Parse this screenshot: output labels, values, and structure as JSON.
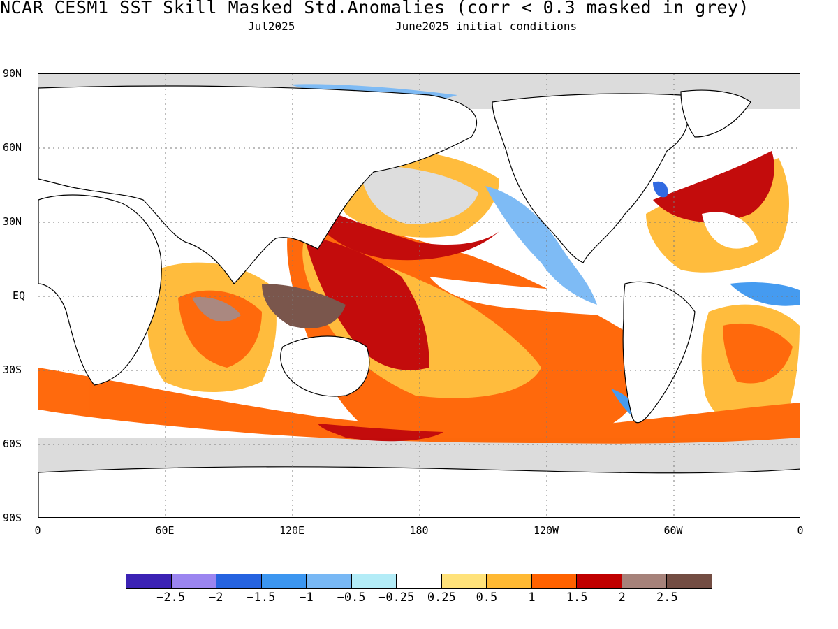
{
  "title": "NCAR_CESM1  SST Skill Masked Std.Anomalies (corr < 0.3 masked in grey)",
  "subtitle_month": "Jul2025",
  "subtitle_init": "June2025 initial conditions",
  "lat_labels": [
    "90N",
    "60N",
    "30N",
    "EQ",
    "30S",
    "60S",
    "90S"
  ],
  "lon_labels": [
    "0",
    "60E",
    "120E",
    "180",
    "120W",
    "60W",
    "0"
  ],
  "colorbar": {
    "colors": [
      "#3b22b4",
      "#9b85f0",
      "#2663e0",
      "#3c96f0",
      "#78b8f5",
      "#b3ecf7",
      "#ffffff",
      "#ffe27a",
      "#ffb933",
      "#ff6200",
      "#c00000",
      "#a6827a",
      "#734d43"
    ],
    "labels": [
      "−2.5",
      "−2",
      "−1.5",
      "−1",
      "−0.5",
      "−0.25",
      "0.25",
      "0.5",
      "1",
      "1.5",
      "2",
      "2.5"
    ]
  },
  "mask_color": "#dcdcdc"
}
